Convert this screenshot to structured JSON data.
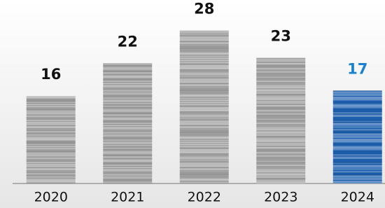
{
  "chart_data": {
    "type": "bar",
    "categories": [
      "2020",
      "2021",
      "2022",
      "2023",
      "2024"
    ],
    "values": [
      16,
      22,
      28,
      23,
      17
    ],
    "colors": [
      "#a3a3a3",
      "#a3a3a3",
      "#a3a3a3",
      "#a3a3a3",
      "#1d5fae"
    ],
    "value_label_colors": [
      "#111111",
      "#111111",
      "#111111",
      "#111111",
      "#1a82cc"
    ]
  }
}
